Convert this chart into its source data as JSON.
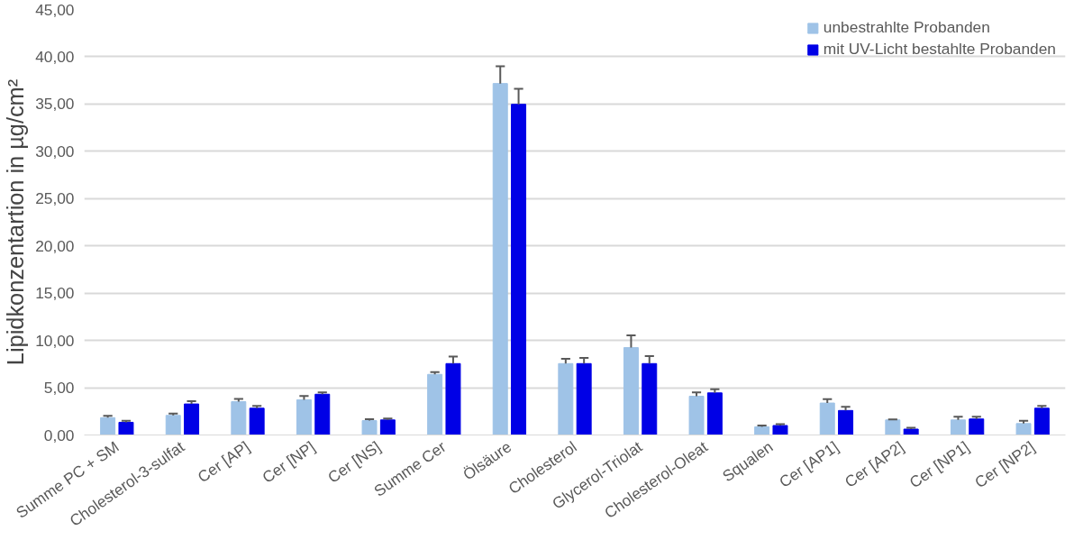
{
  "chart_data": {
    "type": "bar",
    "ylabel": "Lipidkonzentartion in µg/cm²",
    "categories": [
      "Summe PC + SM",
      "Cholesterol-3-sulfat",
      "Cer [AP]",
      "Cer [NP]",
      "Cer [NS]",
      "Summe Cer",
      "Ölsäure",
      "Cholesterol",
      "Glycerol-Triolat",
      "Cholesterol-Oleat",
      "Squalen",
      "Cer [AP1]",
      "Cer [AP2]",
      "Cer [NP1]",
      "Cer [NP2]"
    ],
    "series": [
      {
        "name": "unbestrahlte Probanden",
        "color": "#9fc3e7",
        "values": [
          1.83,
          2.07,
          3.52,
          3.72,
          1.52,
          6.41,
          37.17,
          7.55,
          9.24,
          4.1,
          0.86,
          3.38,
          1.59,
          1.59,
          1.21
        ],
        "errors": [
          [
            1.83,
            2.03
          ],
          [
            2.07,
            2.27
          ],
          [
            3.52,
            3.82
          ],
          [
            3.72,
            4.12
          ],
          [
            1.52,
            1.67
          ],
          [
            6.41,
            6.66
          ],
          [
            37.17,
            39.0
          ],
          [
            7.55,
            8.05
          ],
          [
            9.24,
            10.54
          ],
          [
            4.1,
            4.5
          ],
          [
            0.86,
            1.01
          ],
          [
            3.38,
            3.78
          ],
          [
            1.59,
            1.64
          ],
          [
            1.59,
            1.94
          ],
          [
            1.21,
            1.51
          ]
        ]
      },
      {
        "name": "mit UV-Licht bestahlte Probanden",
        "color": "#0000e6",
        "values": [
          1.34,
          3.28,
          2.83,
          4.31,
          1.59,
          7.55,
          34.97,
          7.55,
          7.55,
          4.45,
          1.0,
          2.59,
          0.62,
          1.69,
          2.83
        ],
        "errors": [
          [
            1.34,
            1.49
          ],
          [
            3.28,
            3.58
          ],
          [
            2.83,
            3.08
          ],
          [
            4.31,
            4.51
          ],
          [
            1.59,
            1.74
          ],
          [
            7.55,
            8.3
          ],
          [
            34.97,
            36.6
          ],
          [
            7.55,
            8.15
          ],
          [
            7.55,
            8.35
          ],
          [
            4.45,
            4.85
          ],
          [
            1.0,
            1.15
          ],
          [
            2.59,
            2.99
          ],
          [
            0.62,
            0.77
          ],
          [
            1.69,
            1.94
          ],
          [
            2.83,
            3.08
          ]
        ]
      }
    ],
    "ylim": [
      0,
      45
    ],
    "yticks": [
      {
        "value": 0,
        "label": "0,00"
      },
      {
        "value": 5,
        "label": "5,00"
      },
      {
        "value": 10,
        "label": "10,00"
      },
      {
        "value": 15,
        "label": "15,00"
      },
      {
        "value": 20,
        "label": "20,00"
      },
      {
        "value": 25,
        "label": "25,00"
      },
      {
        "value": 30,
        "label": "30,00"
      },
      {
        "value": 35,
        "label": "35,00"
      },
      {
        "value": 40,
        "label": "40,00"
      },
      {
        "value": 45,
        "label": "45,00"
      }
    ],
    "grid": "y",
    "legend": "top right"
  }
}
